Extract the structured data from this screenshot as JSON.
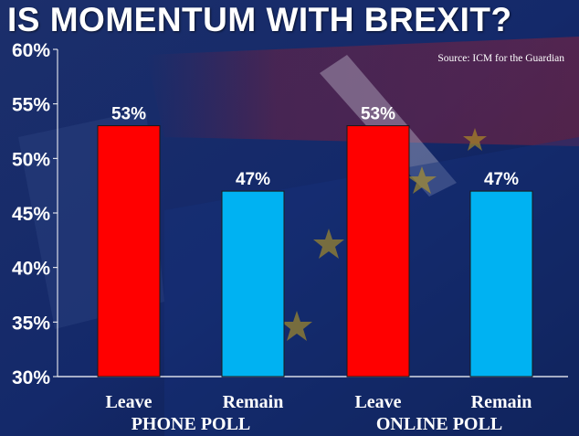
{
  "title": "IS MOMENTUM WITH BREXIT?",
  "source": "Source: ICM for the Guardian",
  "colors": {
    "leave": "#ff0000",
    "remain": "#00b2f2",
    "background": "#142a63",
    "text": "#ffffff"
  },
  "chart_data": {
    "type": "bar",
    "title": "IS MOMENTUM WITH BREXIT?",
    "xlabel": "",
    "ylabel": "",
    "ylim": [
      30,
      60
    ],
    "y_ticks": [
      "30%",
      "35%",
      "40%",
      "45%",
      "50%",
      "55%",
      "60%"
    ],
    "y_tick_values": [
      30,
      35,
      40,
      45,
      50,
      55,
      60
    ],
    "grid": false,
    "groups": [
      {
        "label": "PHONE POLL",
        "bars": [
          {
            "category": "Leave",
            "value": 53,
            "label": "53%",
            "color": "#ff0000"
          },
          {
            "category": "Remain",
            "value": 47,
            "label": "47%",
            "color": "#00b2f2"
          }
        ]
      },
      {
        "label": "ONLINE POLL",
        "bars": [
          {
            "category": "Leave",
            "value": 53,
            "label": "53%",
            "color": "#ff0000"
          },
          {
            "category": "Remain",
            "value": 47,
            "label": "47%",
            "color": "#00b2f2"
          }
        ]
      }
    ]
  }
}
